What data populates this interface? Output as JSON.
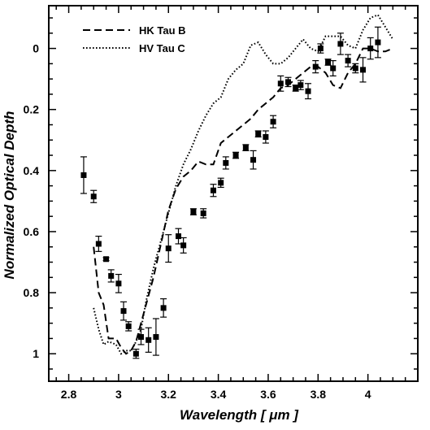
{
  "chart_data": {
    "type": "line",
    "xlabel": "Wavelength [ μm ]",
    "ylabel": "Normalized Optical Depth",
    "xlim": [
      2.72,
      4.2
    ],
    "ylim": [
      1.09,
      -0.14
    ],
    "y_inverted": true,
    "x_ticks": [
      "2.8",
      "3",
      "3.2",
      "3.4",
      "3.6",
      "3.8",
      "4"
    ],
    "x_tick_values": [
      2.8,
      3.0,
      3.2,
      3.4,
      3.6,
      3.8,
      4.0
    ],
    "y_ticks": [
      "0",
      "0.2",
      "0.4",
      "0.6",
      "0.8",
      "1"
    ],
    "y_tick_values": [
      0,
      0.2,
      0.4,
      0.6,
      0.8,
      1.0
    ],
    "legend_position": "top-left",
    "series": [
      {
        "name": "HK Tau B",
        "style": "dashed",
        "x": [
          2.9,
          2.92,
          2.94,
          2.96,
          2.99,
          3.01,
          3.03,
          3.05,
          3.07,
          3.09,
          3.11,
          3.14,
          3.17,
          3.2,
          3.23,
          3.26,
          3.29,
          3.32,
          3.35,
          3.38,
          3.41,
          3.44,
          3.47,
          3.5,
          3.53,
          3.56,
          3.59,
          3.62,
          3.65,
          3.68,
          3.71,
          3.74,
          3.77,
          3.8,
          3.83,
          3.86,
          3.89,
          3.92,
          3.95,
          3.98,
          4.01,
          4.04,
          4.07,
          4.1
        ],
        "y": [
          0.65,
          0.8,
          0.84,
          0.95,
          0.95,
          0.98,
          1.0,
          0.99,
          0.96,
          0.9,
          0.84,
          0.75,
          0.64,
          0.53,
          0.46,
          0.42,
          0.4,
          0.37,
          0.38,
          0.38,
          0.31,
          0.29,
          0.27,
          0.25,
          0.23,
          0.2,
          0.18,
          0.16,
          0.13,
          0.12,
          0.1,
          0.08,
          0.06,
          0.06,
          0.08,
          0.12,
          0.13,
          0.08,
          0.05,
          0.0,
          0.0,
          0.01,
          0.01,
          0.0
        ]
      },
      {
        "name": "HV Tau C",
        "style": "dotted",
        "x": [
          2.9,
          2.92,
          2.94,
          2.96,
          2.99,
          3.01,
          3.03,
          3.05,
          3.07,
          3.09,
          3.11,
          3.14,
          3.17,
          3.2,
          3.23,
          3.26,
          3.29,
          3.32,
          3.35,
          3.38,
          3.41,
          3.44,
          3.47,
          3.5,
          3.53,
          3.56,
          3.59,
          3.62,
          3.65,
          3.68,
          3.71,
          3.74,
          3.77,
          3.8,
          3.83,
          3.86,
          3.89,
          3.92,
          3.95,
          3.98,
          4.01,
          4.04,
          4.07,
          4.1
        ],
        "y": [
          0.85,
          0.92,
          0.97,
          0.96,
          0.97,
          1.0,
          0.99,
          0.99,
          0.96,
          0.92,
          0.83,
          0.72,
          0.63,
          0.54,
          0.45,
          0.38,
          0.33,
          0.27,
          0.22,
          0.18,
          0.16,
          0.1,
          0.07,
          0.05,
          -0.01,
          -0.02,
          0.02,
          0.05,
          0.05,
          0.03,
          0.0,
          -0.03,
          0.0,
          0.01,
          -0.04,
          -0.04,
          -0.04,
          -0.01,
          0.0,
          -0.06,
          -0.1,
          -0.11,
          -0.07,
          -0.03
        ]
      },
      {
        "name": "",
        "style": "points",
        "x": [
          2.86,
          2.9,
          2.92,
          2.95,
          2.97,
          3.0,
          3.02,
          3.04,
          3.07,
          3.09,
          3.12,
          3.15,
          3.18,
          3.2,
          3.24,
          3.26,
          3.3,
          3.34,
          3.38,
          3.41,
          3.43,
          3.47,
          3.51,
          3.54,
          3.56,
          3.59,
          3.62,
          3.65,
          3.68,
          3.71,
          3.73,
          3.76,
          3.79,
          3.81,
          3.84,
          3.86,
          3.89,
          3.92,
          3.95,
          3.98,
          4.01,
          4.04
        ],
        "y": [
          0.415,
          0.485,
          0.64,
          0.69,
          0.745,
          0.77,
          0.86,
          0.91,
          1.0,
          0.945,
          0.955,
          0.945,
          0.85,
          0.655,
          0.615,
          0.645,
          0.535,
          0.54,
          0.465,
          0.44,
          0.375,
          0.35,
          0.325,
          0.365,
          0.28,
          0.29,
          0.24,
          0.115,
          0.11,
          0.13,
          0.12,
          0.14,
          0.06,
          0.0,
          0.045,
          0.065,
          -0.015,
          0.04,
          0.065,
          0.07,
          0.0,
          -0.02
        ],
        "err": [
          0.06,
          0.02,
          0.025,
          0.005,
          0.02,
          0.03,
          0.03,
          0.015,
          0.015,
          0.025,
          0.04,
          0.06,
          0.03,
          0.045,
          0.025,
          0.025,
          0.01,
          0.015,
          0.02,
          0.015,
          0.02,
          0.01,
          0.01,
          0.03,
          0.01,
          0.02,
          0.02,
          0.025,
          0.015,
          0.01,
          0.015,
          0.025,
          0.02,
          0.015,
          0.01,
          0.025,
          0.035,
          0.02,
          0.015,
          0.04,
          0.035,
          0.05
        ]
      }
    ]
  }
}
